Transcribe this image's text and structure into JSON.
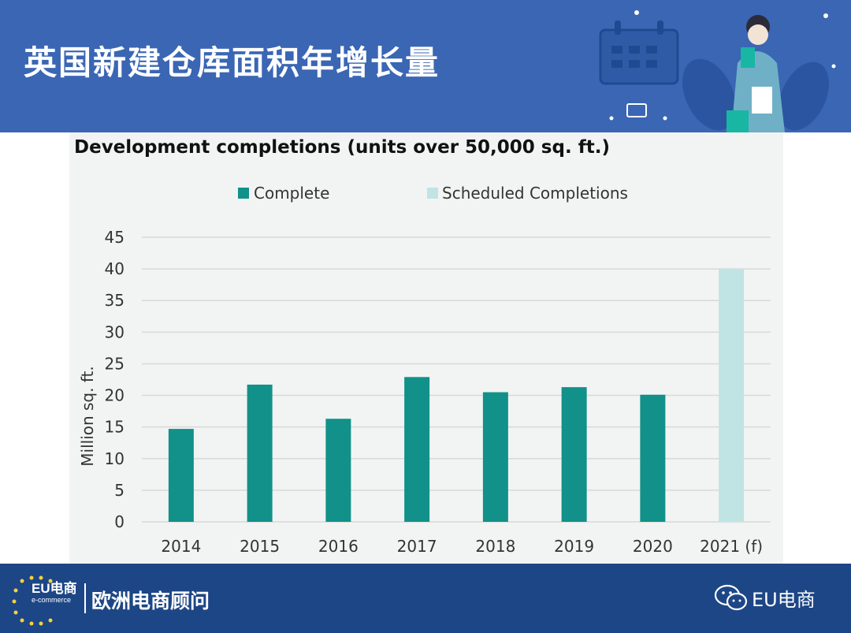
{
  "header": {
    "title": "英国新建仓库面积年增长量"
  },
  "footer": {
    "logo_main": "EU电商",
    "logo_sub": "e-commerce",
    "brand": "欧洲电商顾问",
    "account": "EU电商"
  },
  "colors": {
    "header_bg": "#3a66b4",
    "footer_bg": "#1d4686",
    "complete": "#119189",
    "scheduled": "#c0e4e4"
  },
  "chart_data": {
    "type": "bar",
    "title": "Development completions (units over 50,000 sq. ft.)",
    "ylabel": "Million sq. ft.",
    "xlabel": "",
    "categories": [
      "2014",
      "2015",
      "2016",
      "2017",
      "2018",
      "2019",
      "2020",
      "2021 (f)"
    ],
    "series": [
      {
        "name": "Complete",
        "values": [
          14.7,
          21.7,
          16.3,
          22.9,
          20.5,
          21.3,
          20.1,
          null
        ]
      },
      {
        "name": "Scheduled Completions",
        "values": [
          null,
          null,
          null,
          null,
          null,
          null,
          null,
          40
        ]
      }
    ],
    "ylim": [
      0,
      45
    ],
    "yticks": [
      0,
      5,
      10,
      15,
      20,
      25,
      30,
      35,
      40,
      45
    ],
    "grid": true,
    "legend": "top"
  }
}
